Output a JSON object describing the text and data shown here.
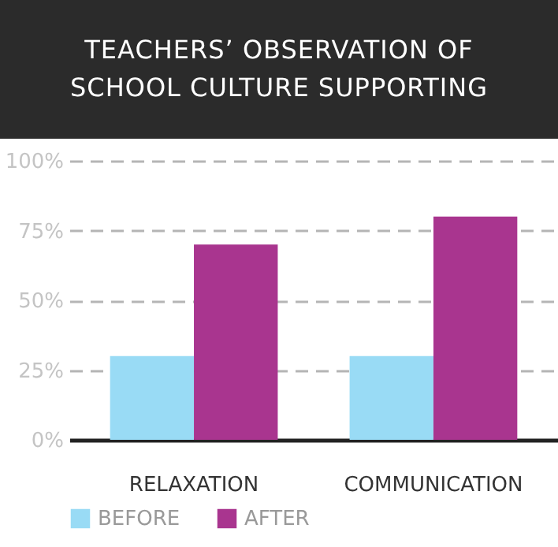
{
  "chart_data": {
    "type": "bar",
    "title": "TEACHERS’ OBSERVATION OF SCHOOL CULTURE SUPPORTING",
    "categories": [
      "RELAXATION",
      "COMMUNICATION"
    ],
    "series": [
      {
        "name": "BEFORE",
        "color": "#99dbf5",
        "values": [
          30,
          30
        ]
      },
      {
        "name": "AFTER",
        "color": "#a9358f",
        "values": [
          70,
          80
        ]
      }
    ],
    "ylim": [
      0,
      100
    ],
    "yticks": [
      {
        "value": 0,
        "label": "0%"
      },
      {
        "value": 25,
        "label": "25%"
      },
      {
        "value": 50,
        "label": "50%"
      },
      {
        "value": 75,
        "label": "75%"
      },
      {
        "value": 100,
        "label": "100%"
      }
    ],
    "grid": "y",
    "legend": "bottom"
  }
}
